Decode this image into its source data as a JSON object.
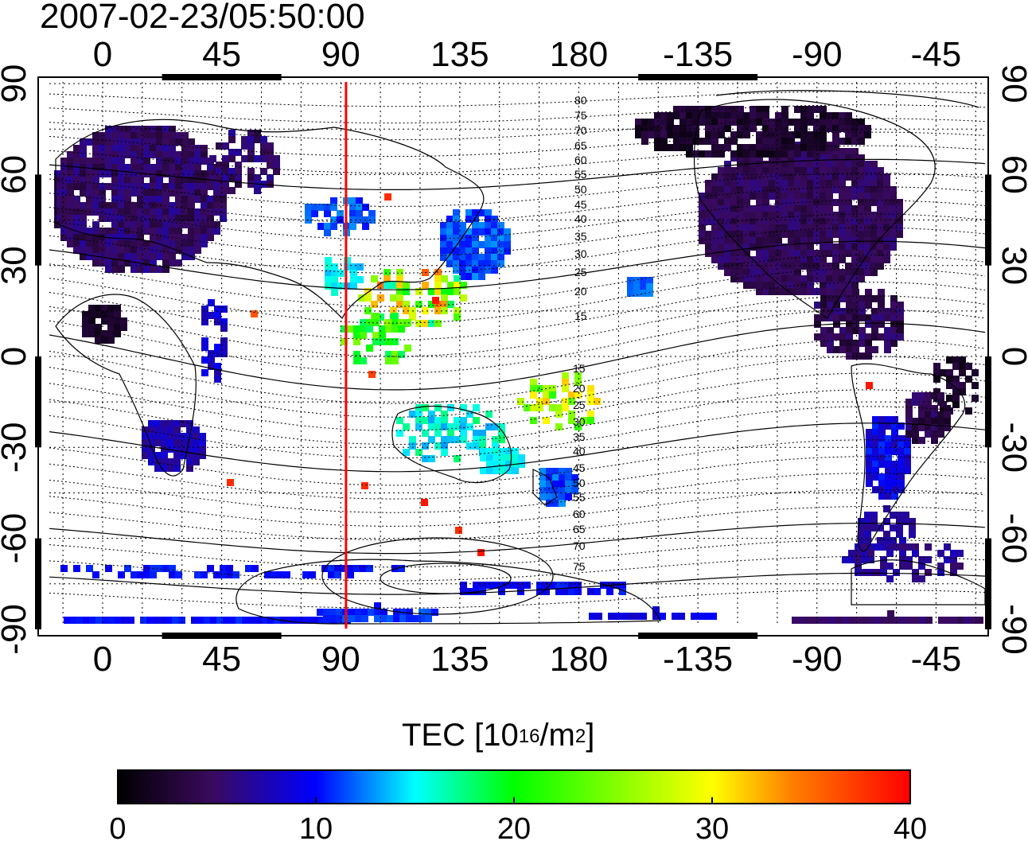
{
  "title": "2007-02-23/05:50:00",
  "map": {
    "lon_ticks": [
      "0",
      "45",
      "90",
      "135",
      "180",
      "-135",
      "-90",
      "-45"
    ],
    "lat_ticks": [
      "90",
      "60",
      "30",
      "0",
      "-30",
      "-60",
      "-90"
    ],
    "terminator_longitude": 92,
    "contour_labels_north": [
      "80",
      "75",
      "70",
      "65",
      "60",
      "55",
      "50",
      "45",
      "40",
      "35",
      "30",
      "25",
      "20",
      "15"
    ],
    "contour_labels_south": [
      "15",
      "20",
      "25",
      "30",
      "35",
      "40",
      "45",
      "50",
      "55",
      "60",
      "65",
      "70",
      "75"
    ],
    "colors": {
      "terminator": "#ff0000",
      "grid": "#000000",
      "coast": "#000000"
    }
  },
  "colorbar": {
    "title_text": "TEC  [10",
    "title_exp1": "16",
    "title_mid": "/m",
    "title_exp2": "2",
    "title_end": "]",
    "range": [
      0,
      40
    ],
    "tick_labels": [
      "0",
      "10",
      "20",
      "30",
      "40"
    ],
    "colors": [
      "#000000",
      "#3a0a5e",
      "#0000ff",
      "#00ffff",
      "#00ff00",
      "#ffff00",
      "#ff8000",
      "#ff0000"
    ]
  }
}
